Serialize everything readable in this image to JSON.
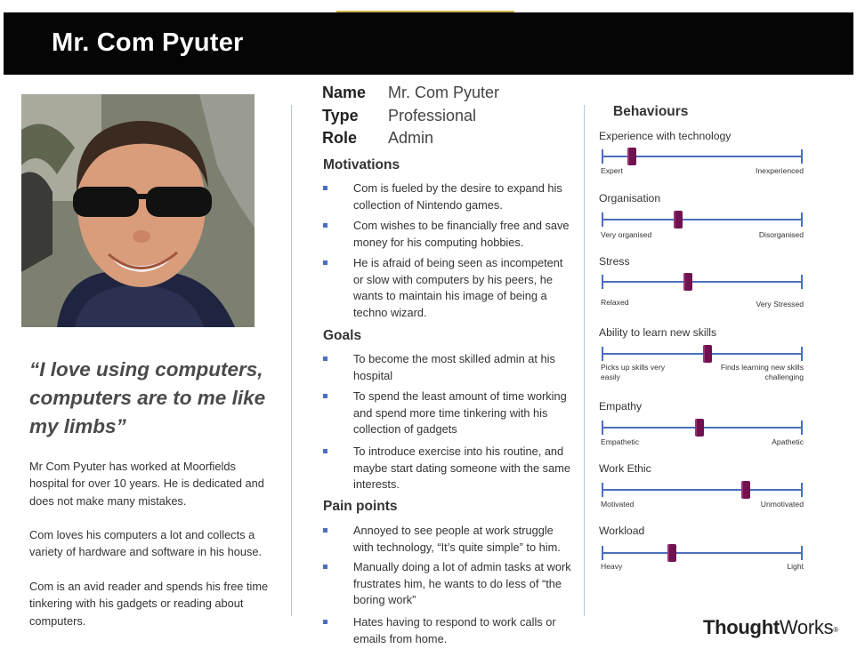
{
  "title": "Mr. Com Pyuter",
  "quote": "“I love using computers, computers are to me like my limbs”",
  "bio": [
    "Mr Com Pyuter has worked at Moorfields hospital for over 10 years. He is dedicated and does not make many mistakes.",
    "Com loves his computers a lot and collects a variety of hardware and software in his house.",
    "Com is an avid reader and spends his free time tinkering with his gadgets or reading about computers."
  ],
  "info": {
    "name_label": "Name",
    "name_value": "Mr. Com Pyuter",
    "type_label": "Type",
    "type_value": "Professional",
    "role_label": "Role",
    "role_value": "Admin"
  },
  "sections": {
    "motivations": {
      "title": "Motivations",
      "items": [
        "Com is fueled by the desire to expand his collection of Nintendo games.",
        "Com wishes to be financially free and save money for his computing hobbies.",
        "He is afraid of being seen as incompetent or slow with computers by his peers, he wants to maintain his image of being a techno wizard."
      ]
    },
    "goals": {
      "title": "Goals",
      "items": [
        "To become the most skilled admin at his hospital",
        "To spend the least amount of time working and spend more time tinkering with his collection of gadgets",
        "To introduce exercise into his routine, and maybe start dating someone with the same interests."
      ]
    },
    "pain_points": {
      "title": "Pain points",
      "items": [
        "Annoyed to see people at work struggle with technology, “It’s quite simple” to him.",
        "Manually doing a lot of admin tasks at work frustrates him, he wants to do less of “the boring work”",
        "Hates having to respond to work calls or emails from home."
      ]
    }
  },
  "behaviours": {
    "title": "Behaviours",
    "scales": [
      {
        "label": "Experience with technology",
        "low": "Expert",
        "high": "Inexperienced",
        "value": 0.15
      },
      {
        "label": "Organisation",
        "low": "Very organised",
        "high": "Disorganised",
        "value": 0.38
      },
      {
        "label": "Stress",
        "low": "Relaxed",
        "high": "Very Stressed",
        "value": 0.43
      },
      {
        "label": "Ability to learn new skills",
        "low": "Picks up skills very easily",
        "high": "Finds learning new skills challenging",
        "value": 0.53
      },
      {
        "label": "Empathy",
        "low": "Empathetic",
        "high": "Apathetic",
        "value": 0.49
      },
      {
        "label": "Work Ethic",
        "low": "Motivated",
        "high": "Unmotivated",
        "value": 0.72
      },
      {
        "label": "Workload",
        "low": "Heavy",
        "high": "Light",
        "value": 0.35
      }
    ]
  },
  "logo": {
    "bold": "Thought",
    "regular": "Works",
    "mark": "®"
  },
  "colors": {
    "header": "#050505",
    "accent": "#4a6fbe",
    "slider": "#70124f"
  }
}
